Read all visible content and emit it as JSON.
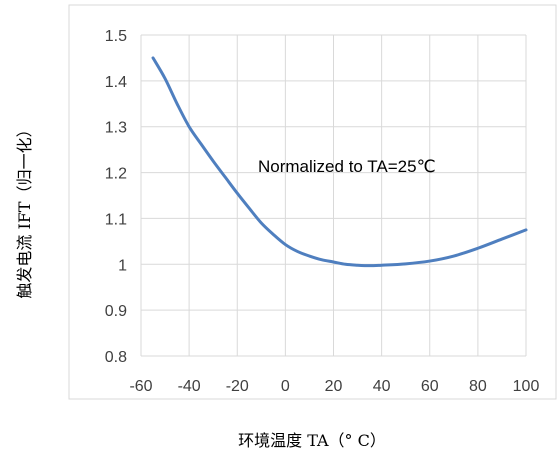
{
  "chart_data": {
    "type": "line",
    "title": "",
    "xlabel": "环境温度 TA（° C）",
    "ylabel": "触发电流 IFT（归一化）",
    "annotation": "Normalized to TA=25℃",
    "xlim": [
      -60,
      100
    ],
    "ylim": [
      0.8,
      1.5
    ],
    "xticks": [
      -60,
      -40,
      -20,
      0,
      20,
      40,
      60,
      80,
      100
    ],
    "yticks": [
      0.8,
      0.9,
      1,
      1.1,
      1.2,
      1.3,
      1.4,
      1.5
    ],
    "xtick_labels": [
      "-60",
      "-40",
      "-20",
      "0",
      "20",
      "40",
      "60",
      "80",
      "100"
    ],
    "ytick_labels": [
      "0.8",
      "0.9",
      "1",
      "1.1",
      "1.2",
      "1.3",
      "1.4",
      "1.5"
    ],
    "grid": true,
    "legend": "none",
    "series": [
      {
        "color": "#4f7fbf",
        "x": [
          -55,
          -50,
          -45,
          -40,
          -35,
          -30,
          -25,
          -20,
          -15,
          -10,
          -5,
          0,
          5,
          10,
          15,
          20,
          25,
          30,
          35,
          40,
          50,
          60,
          70,
          80,
          90,
          100
        ],
        "y": [
          1.45,
          1.405,
          1.35,
          1.3,
          1.262,
          1.225,
          1.19,
          1.155,
          1.122,
          1.09,
          1.065,
          1.043,
          1.028,
          1.018,
          1.01,
          1.005,
          1.0,
          0.998,
          0.997,
          0.998,
          1.001,
          1.007,
          1.018,
          1.035,
          1.055,
          1.075
        ]
      }
    ]
  }
}
